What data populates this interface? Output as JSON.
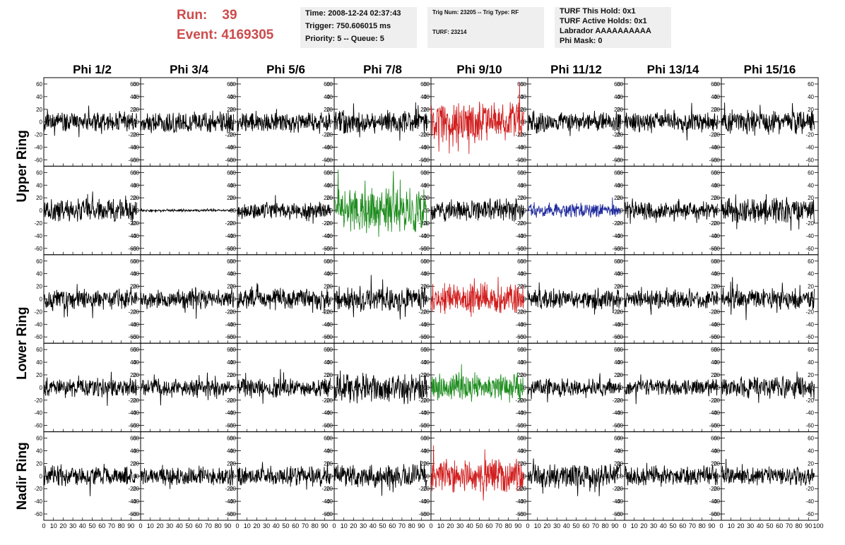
{
  "header": {
    "run_label": "Run:",
    "run_value": "39",
    "event_label": "Event:",
    "event_value": "4169305"
  },
  "info_panels": [
    [
      "Time: 2008-12-24 02:37:43",
      "Trigger: 750.606015 ms",
      "Priority: 5 -- Queue: 5"
    ],
    [
      "Trig Num: 23205 -- Trig Type: RF",
      "TURF: 23214"
    ],
    [
      "TURF This Hold: 0x1",
      "TURF Active Holds: 0x1",
      "Labrador AAAAAAAAAA",
      "Phi Mask: 0"
    ]
  ],
  "colors": {
    "header_red": "#cc4b4b",
    "panel_bg": "#efefef",
    "trace_black": "#000000",
    "trace_red": "#d11f1f",
    "trace_green": "#1e8c1e",
    "trace_blue": "#1f2a9c"
  },
  "chart_data": {
    "type": "line",
    "title": "",
    "columns": [
      "Phi 1/2",
      "Phi 3/4",
      "Phi 5/6",
      "Phi 7/8",
      "Phi 9/10",
      "Phi 11/12",
      "Phi 13/14",
      "Phi 15/16"
    ],
    "rings": [
      "Upper Ring",
      "Lower Ring",
      "Nadir Ring"
    ],
    "ylim": [
      -70,
      70
    ],
    "yticks": [
      -60,
      -40,
      -20,
      0,
      20,
      40,
      60
    ],
    "xlim": [
      0,
      100
    ],
    "xticks": [
      0,
      10,
      20,
      30,
      40,
      50,
      60,
      70,
      80,
      90,
      100
    ],
    "grid": false,
    "samples": 260,
    "x_extent": 96,
    "rows": [
      [
        {
          "color": "black",
          "amp": 12,
          "seed": 11
        },
        {
          "color": "black",
          "amp": 13,
          "seed": 12
        },
        {
          "color": "black",
          "amp": 12,
          "seed": 13
        },
        {
          "color": "black",
          "amp": 14,
          "seed": 14
        },
        {
          "color": "red",
          "amp": 25,
          "seed": 15
        },
        {
          "color": "black",
          "amp": 13,
          "seed": 16
        },
        {
          "color": "black",
          "amp": 12,
          "seed": 17
        },
        {
          "color": "black",
          "amp": 14,
          "seed": 18
        }
      ],
      [
        {
          "color": "black",
          "amp": 14,
          "seed": 21
        },
        {
          "color": "black",
          "amp": 1.5,
          "seed": 22
        },
        {
          "color": "black",
          "amp": 10,
          "seed": 23
        },
        {
          "color": "green",
          "amp": 26,
          "seed": 24
        },
        {
          "color": "black",
          "amp": 14,
          "seed": 25
        },
        {
          "color": "blue",
          "amp": 9,
          "seed": 26
        },
        {
          "color": "black",
          "amp": 11,
          "seed": 27
        },
        {
          "color": "black",
          "amp": 15,
          "seed": 28
        }
      ],
      [
        {
          "color": "black",
          "amp": 12,
          "seed": 31
        },
        {
          "color": "black",
          "amp": 12,
          "seed": 32
        },
        {
          "color": "black",
          "amp": 13,
          "seed": 33
        },
        {
          "color": "black",
          "amp": 15,
          "seed": 34
        },
        {
          "color": "red",
          "amp": 18,
          "seed": 35
        },
        {
          "color": "black",
          "amp": 12,
          "seed": 36
        },
        {
          "color": "black",
          "amp": 11,
          "seed": 37
        },
        {
          "color": "black",
          "amp": 13,
          "seed": 38
        }
      ],
      [
        {
          "color": "black",
          "amp": 12,
          "seed": 41
        },
        {
          "color": "black",
          "amp": 11,
          "seed": 42
        },
        {
          "color": "black",
          "amp": 12,
          "seed": 43
        },
        {
          "color": "black",
          "amp": 17,
          "seed": 44
        },
        {
          "color": "green",
          "amp": 18,
          "seed": 45
        },
        {
          "color": "black",
          "amp": 11,
          "seed": 46
        },
        {
          "color": "black",
          "amp": 10,
          "seed": 47
        },
        {
          "color": "black",
          "amp": 13,
          "seed": 48
        }
      ],
      [
        {
          "color": "black",
          "amp": 12,
          "seed": 51
        },
        {
          "color": "black",
          "amp": 11,
          "seed": 52
        },
        {
          "color": "black",
          "amp": 12,
          "seed": 53
        },
        {
          "color": "black",
          "amp": 14,
          "seed": 54
        },
        {
          "color": "red",
          "amp": 20,
          "seed": 55
        },
        {
          "color": "black",
          "amp": 14,
          "seed": 56
        },
        {
          "color": "black",
          "amp": 12,
          "seed": 57
        },
        {
          "color": "black",
          "amp": 12,
          "seed": 58
        }
      ]
    ]
  }
}
